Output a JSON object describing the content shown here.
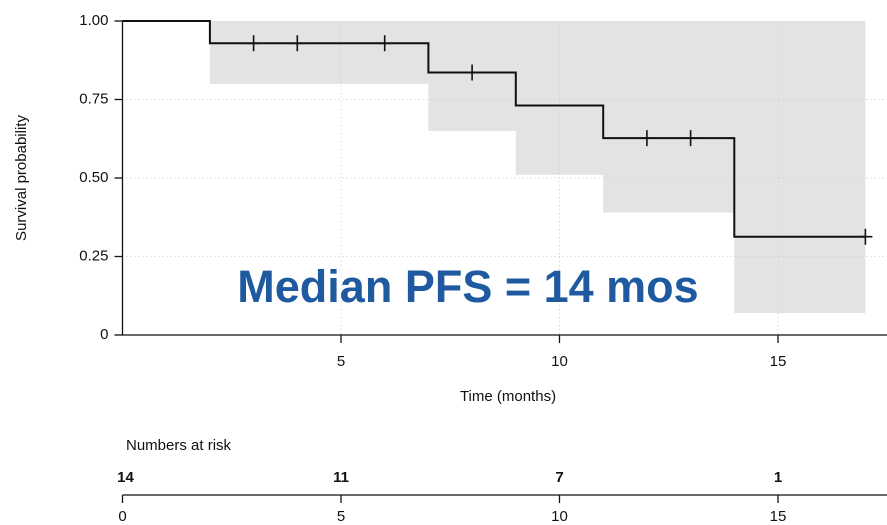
{
  "chart_data": {
    "type": "survival",
    "annotation": "Median PFS = 14 mos",
    "annotation_color": "#1f5aa0",
    "xlabel": "Time (months)",
    "ylabel": "Survival probability",
    "xlim": [
      0,
      17.5
    ],
    "ylim": [
      0,
      1
    ],
    "xticks": [
      5,
      10,
      15
    ],
    "yticks": [
      {
        "value": 1,
        "label": "1.00"
      },
      {
        "value": 0.75,
        "label": "0.75"
      },
      {
        "value": 0.5,
        "label": "0.50"
      },
      {
        "value": 0.25,
        "label": "0.25"
      },
      0
    ],
    "grid": true,
    "series": [
      {
        "color": "#111111",
        "x": [
          0,
          2,
          7,
          9,
          11,
          14,
          17
        ],
        "values": [
          1,
          0.929,
          0.836,
          0.731,
          0.627,
          0.313,
          0.313
        ],
        "censor_x": [
          3,
          4,
          6,
          8,
          12,
          13,
          17
        ],
        "censor_values": [
          0.929,
          0.929,
          0.929,
          0.836,
          0.627,
          0.627,
          0.313
        ],
        "ci_color": "#e3e3e3",
        "ci_x": [
          2,
          7,
          9,
          11,
          14,
          17
        ],
        "ci_lower": [
          0.8,
          0.65,
          0.51,
          0.39,
          0.07,
          0.07
        ],
        "ci_upper": [
          1,
          1,
          1,
          1,
          1,
          1
        ]
      }
    ],
    "risk_table": {
      "title": "Numbers at risk",
      "x": [
        0,
        5,
        10,
        15
      ],
      "counts": [
        14,
        11,
        7,
        1
      ],
      "xticks": [
        0,
        5,
        10,
        15
      ]
    }
  }
}
